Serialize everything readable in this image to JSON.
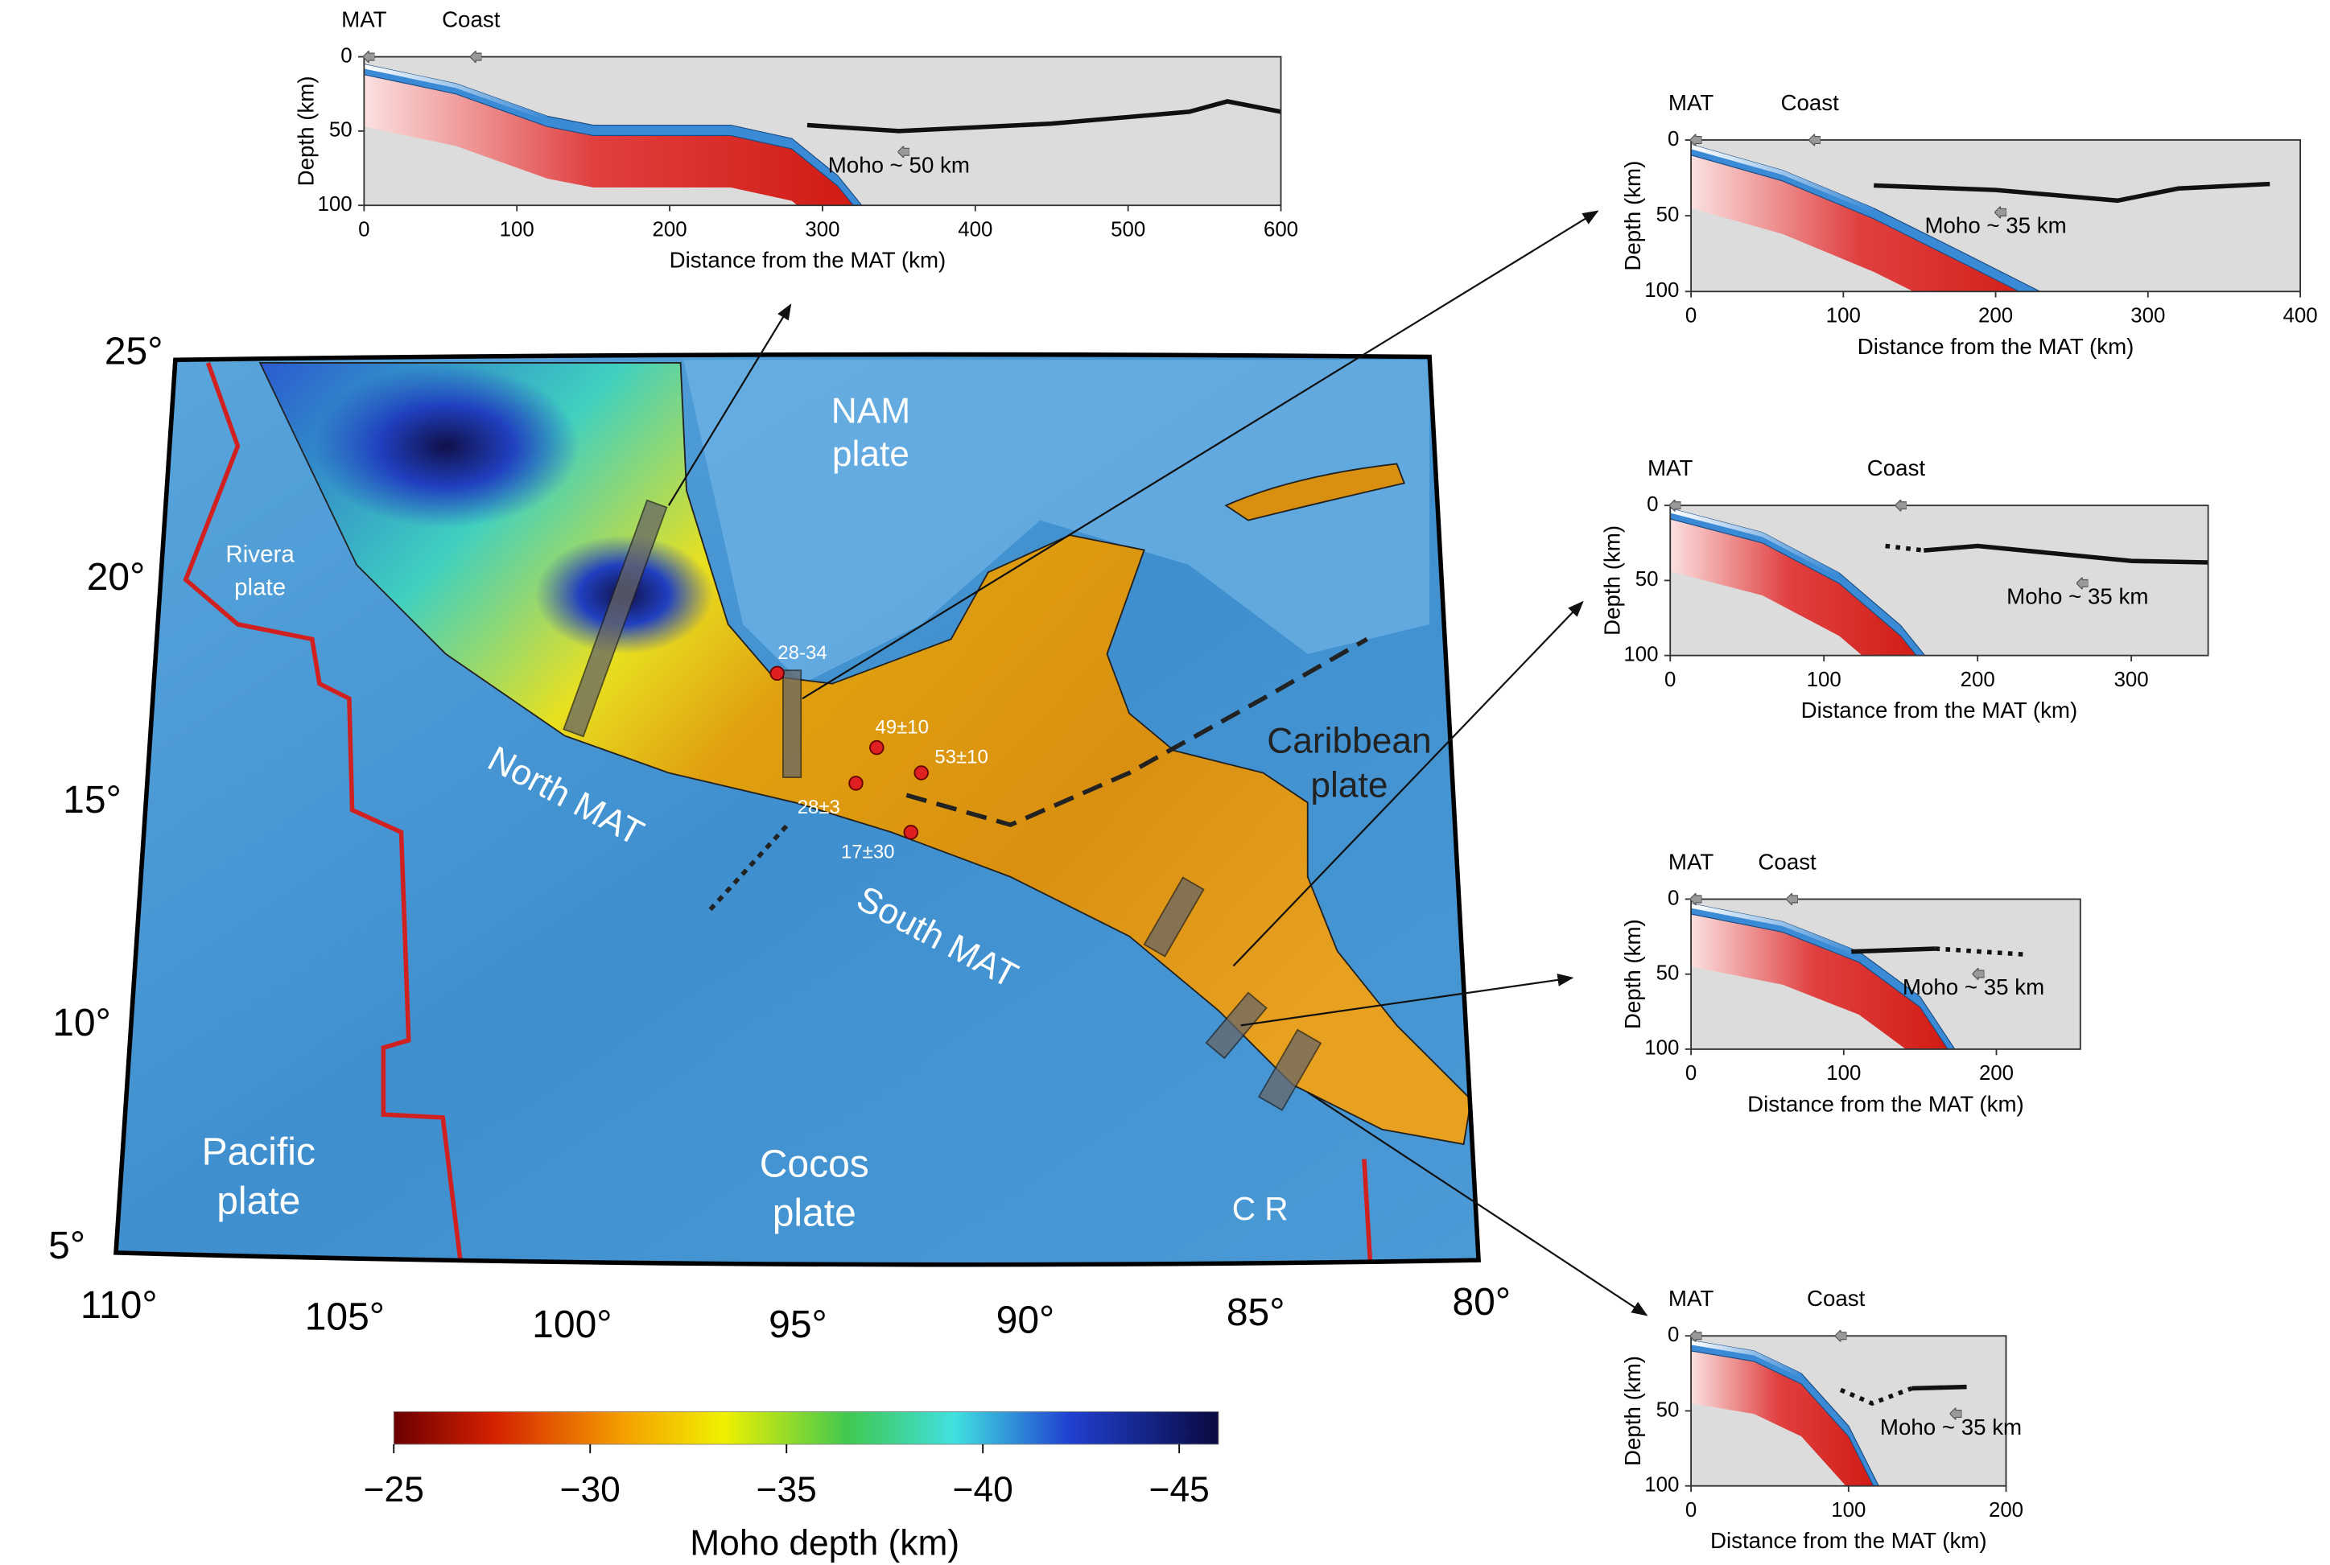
{
  "map": {
    "lat_labels": [
      "5°",
      "10°",
      "15°",
      "20°",
      "25°"
    ],
    "lon_labels": [
      "110°",
      "105°",
      "100°",
      "95°",
      "90°",
      "85°",
      "80°"
    ],
    "plates": [
      [
        "NAM",
        "plate"
      ],
      [
        "Rivera",
        "plate"
      ],
      [
        "Pacific",
        "plate"
      ],
      [
        "Cocos",
        "plate"
      ],
      [
        "Caribbean",
        "plate"
      ]
    ],
    "trenches": [
      "North MAT",
      "South MAT"
    ],
    "ridge": "C R",
    "stations": [
      "28-34",
      "49±10",
      "53±10",
      "28±3",
      "17±30"
    ]
  },
  "colorbar": {
    "title": "Moho depth (km)",
    "lim": [
      -25,
      -46
    ],
    "ticks": [
      {
        "value": -25,
        "label": "−25"
      },
      {
        "value": -30,
        "label": "−30"
      },
      {
        "value": -35,
        "label": "−35"
      },
      {
        "value": -40,
        "label": "−40"
      },
      {
        "value": -45,
        "label": "−45"
      }
    ]
  },
  "profiles": [
    {
      "mat_label": "MAT",
      "coast_label": "Coast",
      "moho_label": "Moho ~ 50 km",
      "ylabel": "Depth (km)",
      "xlabel": "Distance from the MAT (km)",
      "xlim": [
        0,
        600
      ],
      "xticks": [
        0,
        100,
        200,
        300,
        400,
        500,
        600
      ],
      "ylim": [
        0,
        100
      ],
      "yticks": [
        0,
        50,
        100
      ]
    },
    {
      "mat_label": "MAT",
      "coast_label": "Coast",
      "moho_label": "Moho ~ 35 km",
      "ylabel": "Depth (km)",
      "xlabel": "Distance from the MAT (km)",
      "xlim": [
        0,
        400
      ],
      "xticks": [
        0,
        100,
        200,
        300,
        400
      ],
      "ylim": [
        0,
        100
      ],
      "yticks": [
        0,
        50,
        100
      ]
    },
    {
      "mat_label": "MAT",
      "coast_label": "Coast",
      "moho_label": "Moho ~ 35 km",
      "ylabel": "Depth (km)",
      "xlabel": "Distance from the MAT (km)",
      "xlim": [
        0,
        350
      ],
      "xticks": [
        0,
        100,
        200,
        300
      ],
      "ylim": [
        0,
        100
      ],
      "yticks": [
        0,
        50,
        100
      ]
    },
    {
      "mat_label": "MAT",
      "coast_label": "Coast",
      "moho_label": "Moho ~ 35 km",
      "ylabel": "Depth (km)",
      "xlabel": "Distance from the MAT (km)",
      "xlim": [
        0,
        255
      ],
      "xticks": [
        0,
        100,
        200
      ],
      "ylim": [
        0,
        100
      ],
      "yticks": [
        0,
        50,
        100
      ]
    },
    {
      "mat_label": "MAT",
      "coast_label": "Coast",
      "moho_label": "Moho ~ 35 km",
      "ylabel": "Depth (km)",
      "xlabel": "Distance from the MAT (km)",
      "xlim": [
        0,
        200
      ],
      "xticks": [
        0,
        100,
        200
      ],
      "ylim": [
        0,
        100
      ],
      "yticks": [
        0,
        50,
        100
      ]
    }
  ]
}
